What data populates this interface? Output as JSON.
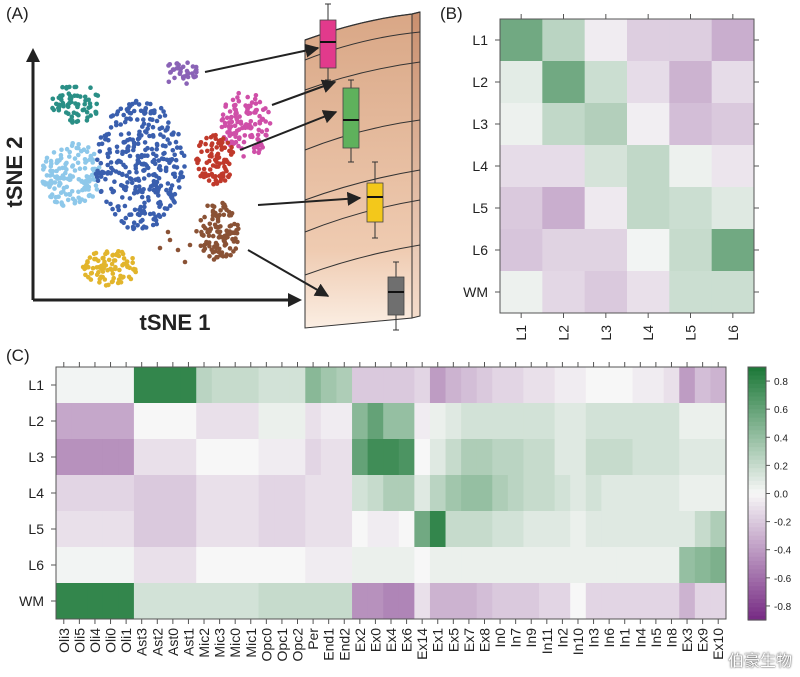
{
  "panels": {
    "a_label": "(A)",
    "b_label": "(B)",
    "c_label": "(C)"
  },
  "tsne": {
    "xlabel": "tSNE 1",
    "ylabel": "tSNE 2",
    "clusters": [
      {
        "name": "teal",
        "color": "#2a8f86"
      },
      {
        "name": "light-blue",
        "color": "#8ec8ea"
      },
      {
        "name": "blue",
        "color": "#3a5fae"
      },
      {
        "name": "purple",
        "color": "#8a63b6"
      },
      {
        "name": "magenta",
        "color": "#cf4fa8"
      },
      {
        "name": "red",
        "color": "#c0392b"
      },
      {
        "name": "brown",
        "color": "#8a5235"
      },
      {
        "name": "yellow",
        "color": "#e2b52c"
      }
    ],
    "boxes": [
      {
        "name": "magenta-box",
        "color": "#e23a8c"
      },
      {
        "name": "green-box",
        "color": "#5fb15c"
      },
      {
        "name": "yellow-box",
        "color": "#f3c81b"
      },
      {
        "name": "gray-box",
        "color": "#6f6f6f"
      }
    ]
  },
  "chart_data": [
    {
      "type": "heatmap",
      "title": "",
      "rows": [
        "L1",
        "L2",
        "L3",
        "L4",
        "L5",
        "L6",
        "WM"
      ],
      "columns": [
        "L1",
        "L2",
        "L3",
        "L4",
        "L5",
        "L6"
      ],
      "values": [
        [
          0.55,
          0.25,
          -0.05,
          -0.18,
          -0.18,
          -0.32
        ],
        [
          0.08,
          0.55,
          0.18,
          -0.12,
          -0.3,
          -0.12
        ],
        [
          0.04,
          0.22,
          0.28,
          -0.04,
          -0.25,
          -0.2
        ],
        [
          -0.12,
          -0.12,
          0.14,
          0.22,
          0.04,
          -0.08
        ],
        [
          -0.2,
          -0.32,
          -0.06,
          0.22,
          0.18,
          0.1
        ],
        [
          -0.22,
          -0.16,
          -0.16,
          0.02,
          0.2,
          0.55
        ],
        [
          0.04,
          -0.14,
          -0.2,
          -0.1,
          0.18,
          0.18
        ]
      ]
    },
    {
      "type": "heatmap",
      "title": "",
      "rows": [
        "L1",
        "L2",
        "L3",
        "L4",
        "L5",
        "L6",
        "WM"
      ],
      "columns": [
        "Oli3",
        "Oli5",
        "Oli4",
        "Oli0",
        "Oli1",
        "Ast3",
        "Ast2",
        "Ast0",
        "Ast1",
        "Mic2",
        "Mic3",
        "Mic0",
        "Mic1",
        "Opc0",
        "Opc1",
        "Opc2",
        "Per",
        "End1",
        "End2",
        "Ex2",
        "Ex0",
        "Ex4",
        "Ex6",
        "Ex14",
        "Ex1",
        "Ex5",
        "Ex7",
        "Ex8",
        "In0",
        "In7",
        "In9",
        "In11",
        "In2",
        "In10",
        "In3",
        "In6",
        "In1",
        "In4",
        "In5",
        "In8",
        "Ex3",
        "Ex9",
        "Ex10"
      ],
      "values": [
        [
          0.02,
          0.02,
          0.02,
          0.02,
          0.02,
          0.8,
          0.8,
          0.8,
          0.8,
          0.25,
          0.2,
          0.2,
          0.2,
          0.15,
          0.15,
          0.15,
          0.45,
          0.35,
          0.3,
          -0.2,
          -0.2,
          -0.2,
          -0.2,
          -0.15,
          -0.4,
          -0.3,
          -0.25,
          -0.2,
          -0.15,
          -0.15,
          -0.1,
          -0.1,
          -0.05,
          -0.05,
          0.0,
          0.0,
          0.0,
          -0.05,
          -0.05,
          -0.1,
          -0.4,
          -0.25,
          -0.3
        ],
        [
          -0.35,
          -0.35,
          -0.35,
          -0.35,
          -0.35,
          0.0,
          0.0,
          0.0,
          0.0,
          -0.1,
          -0.1,
          -0.1,
          -0.1,
          0.05,
          0.05,
          0.05,
          -0.1,
          -0.05,
          -0.05,
          0.45,
          0.6,
          0.4,
          0.4,
          -0.05,
          0.05,
          0.1,
          0.15,
          0.15,
          0.15,
          0.15,
          0.15,
          0.15,
          0.1,
          0.1,
          0.15,
          0.15,
          0.15,
          0.15,
          0.15,
          0.15,
          0.05,
          0.05,
          0.05
        ],
        [
          -0.45,
          -0.45,
          -0.45,
          -0.45,
          -0.45,
          -0.1,
          -0.1,
          -0.1,
          -0.1,
          0.0,
          0.0,
          0.0,
          0.0,
          -0.05,
          -0.05,
          -0.05,
          -0.15,
          -0.1,
          -0.1,
          0.6,
          0.75,
          0.75,
          0.7,
          0.0,
          0.1,
          0.2,
          0.3,
          0.3,
          0.25,
          0.25,
          0.2,
          0.2,
          0.1,
          0.1,
          0.2,
          0.2,
          0.2,
          0.15,
          0.15,
          0.15,
          0.1,
          0.1,
          0.1
        ],
        [
          -0.15,
          -0.15,
          -0.15,
          -0.15,
          -0.15,
          -0.2,
          -0.2,
          -0.2,
          -0.2,
          -0.1,
          -0.1,
          -0.1,
          -0.1,
          -0.15,
          -0.15,
          -0.15,
          -0.1,
          -0.1,
          -0.1,
          0.15,
          0.2,
          0.3,
          0.3,
          0.1,
          0.25,
          0.35,
          0.4,
          0.4,
          0.3,
          0.25,
          0.2,
          0.2,
          0.15,
          0.1,
          0.15,
          0.1,
          0.1,
          0.1,
          0.1,
          0.1,
          0.05,
          0.05,
          0.05
        ],
        [
          -0.1,
          -0.1,
          -0.1,
          -0.1,
          -0.1,
          -0.2,
          -0.2,
          -0.2,
          -0.2,
          -0.1,
          -0.1,
          -0.1,
          -0.1,
          -0.15,
          -0.15,
          -0.15,
          -0.1,
          -0.1,
          -0.1,
          0.0,
          -0.05,
          -0.05,
          0.0,
          0.55,
          0.8,
          0.2,
          0.2,
          0.2,
          0.15,
          0.15,
          0.1,
          0.1,
          0.1,
          0.05,
          0.1,
          0.1,
          0.1,
          0.1,
          0.1,
          0.1,
          0.1,
          0.2,
          0.3
        ],
        [
          0.02,
          0.02,
          0.02,
          0.02,
          0.02,
          -0.1,
          -0.1,
          -0.1,
          -0.1,
          0.0,
          0.0,
          0.0,
          0.0,
          0.0,
          0.0,
          0.0,
          -0.05,
          -0.05,
          -0.05,
          0.05,
          0.05,
          0.05,
          0.05,
          0.0,
          0.05,
          0.05,
          0.05,
          0.05,
          0.05,
          0.05,
          0.05,
          0.05,
          0.05,
          0.05,
          0.05,
          0.05,
          0.05,
          0.05,
          0.05,
          0.05,
          0.4,
          0.45,
          0.5
        ],
        [
          0.8,
          0.8,
          0.8,
          0.8,
          0.8,
          0.15,
          0.15,
          0.15,
          0.15,
          0.15,
          0.15,
          0.15,
          0.15,
          0.2,
          0.2,
          0.2,
          0.2,
          0.2,
          0.2,
          -0.45,
          -0.45,
          -0.5,
          -0.5,
          -0.1,
          -0.3,
          -0.3,
          -0.3,
          -0.25,
          -0.2,
          -0.2,
          -0.2,
          -0.15,
          -0.15,
          0.0,
          -0.15,
          -0.15,
          -0.15,
          -0.15,
          -0.15,
          -0.15,
          -0.3,
          -0.15,
          -0.15
        ]
      ],
      "colorbar": {
        "min": -0.9,
        "max": 0.9,
        "ticks": [
          0.8,
          0.6,
          0.4,
          0.2,
          0.0,
          -0.2,
          -0.4,
          -0.6,
          -0.8
        ],
        "tick_labels": [
          "0.8",
          "0.6",
          "0.4",
          "0.2",
          "0.0",
          "-0.2",
          "-0.4",
          "-0.6",
          "-0.8"
        ]
      }
    }
  ],
  "watermark": "伯豪生物"
}
